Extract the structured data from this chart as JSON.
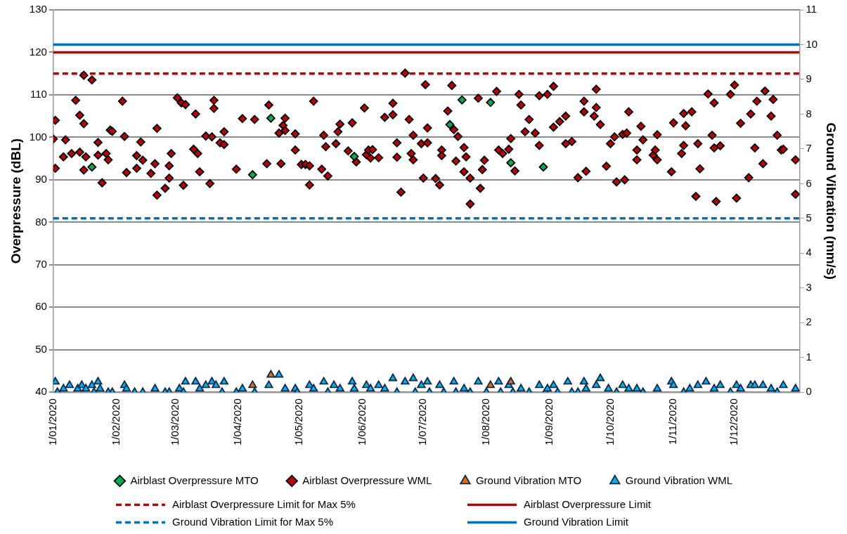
{
  "chart_data": {
    "type": "scatter",
    "ylabel": "Overpressure (dBL)",
    "y2label": "Ground Vibration (mm/s)",
    "xlim": [
      "2020-01-01",
      "2021-01-02"
    ],
    "xticks": [
      {
        "value": "2020-01-01",
        "label": "1/01/2020"
      },
      {
        "value": "2020-02-01",
        "label": "1/02/2020"
      },
      {
        "value": "2020-03-01",
        "label": "1/03/2020"
      },
      {
        "value": "2020-04-01",
        "label": "1/04/2020"
      },
      {
        "value": "2020-05-01",
        "label": "1/05/2020"
      },
      {
        "value": "2020-06-01",
        "label": "1/06/2020"
      },
      {
        "value": "2020-07-01",
        "label": "1/07/2020"
      },
      {
        "value": "2020-08-01",
        "label": "1/08/2020"
      },
      {
        "value": "2020-09-01",
        "label": "1/09/2020"
      },
      {
        "value": "2020-10-01",
        "label": "1/10/2020"
      },
      {
        "value": "2020-11-01",
        "label": "1/11/2020"
      },
      {
        "value": "2020-12-01",
        "label": "1/12/2020"
      }
    ],
    "ylim": [
      40,
      130
    ],
    "yticks": [
      40,
      50,
      60,
      70,
      80,
      90,
      100,
      110,
      120,
      130
    ],
    "y2lim": [
      0,
      11
    ],
    "y2ticks": [
      0,
      1,
      2,
      3,
      4,
      5,
      6,
      7,
      8,
      9,
      10,
      11
    ],
    "grid": "y",
    "legend": "bottom",
    "series": [
      {
        "name": "Airblast Overpressure MTO",
        "color": "#00b050",
        "marker": "diamond",
        "x": [
          "2020-01-20",
          "2020-04-08",
          "2020-04-17",
          "2020-05-28",
          "2020-07-14",
          "2020-07-20",
          "2020-08-03",
          "2020-08-13",
          "2020-08-29"
        ],
        "values": [
          93.0,
          91.2,
          104.5,
          95.5,
          103.0,
          108.8,
          108.2,
          94.0,
          93.0
        ]
      },
      {
        "name": "Airblast Overpressure WML",
        "color": "#c00000",
        "marker": "diamond",
        "x": [
          "2020-01-01",
          "2020-01-02",
          "2020-01-02",
          "2020-01-06",
          "2020-01-07",
          "2020-01-10",
          "2020-01-12",
          "2020-01-14",
          "2020-01-14",
          "2020-01-16",
          "2020-01-16",
          "2020-01-16",
          "2020-01-17",
          "2020-01-20",
          "2020-01-23",
          "2020-01-23",
          "2020-01-25",
          "2020-01-27",
          "2020-01-28",
          "2020-01-29",
          "2020-01-30",
          "2020-02-04",
          "2020-02-05",
          "2020-02-06",
          "2020-02-11",
          "2020-02-11",
          "2020-02-13",
          "2020-02-14",
          "2020-02-18",
          "2020-02-20",
          "2020-02-21",
          "2020-02-21",
          "2020-02-25",
          "2020-02-27",
          "2020-02-27",
          "2020-02-28",
          "2020-03-02",
          "2020-03-04",
          "2020-03-05",
          "2020-03-06",
          "2020-03-10",
          "2020-03-11",
          "2020-03-12",
          "2020-03-13",
          "2020-03-16",
          "2020-03-18",
          "2020-03-19",
          "2020-03-20",
          "2020-03-20",
          "2020-03-23",
          "2020-03-25",
          "2020-03-25",
          "2020-03-31",
          "2020-04-03",
          "2020-04-09",
          "2020-04-15",
          "2020-04-16",
          "2020-04-21",
          "2020-04-22",
          "2020-04-23",
          "2020-04-24",
          "2020-04-24",
          "2020-04-29",
          "2020-04-29",
          "2020-05-02",
          "2020-05-04",
          "2020-05-06",
          "2020-05-06",
          "2020-05-08",
          "2020-05-12",
          "2020-05-13",
          "2020-05-14",
          "2020-05-15",
          "2020-05-19",
          "2020-05-20",
          "2020-05-21",
          "2020-05-25",
          "2020-05-27",
          "2020-05-29",
          "2020-06-02",
          "2020-06-03",
          "2020-06-04",
          "2020-06-05",
          "2020-06-06",
          "2020-06-09",
          "2020-06-12",
          "2020-06-16",
          "2020-06-16",
          "2020-06-18",
          "2020-06-18",
          "2020-06-20",
          "2020-06-22",
          "2020-06-24",
          "2020-06-25",
          "2020-06-26",
          "2020-06-26",
          "2020-06-30",
          "2020-07-01",
          "2020-07-02",
          "2020-07-03",
          "2020-07-03",
          "2020-07-07",
          "2020-07-09",
          "2020-07-10",
          "2020-07-10",
          "2020-07-13",
          "2020-07-15",
          "2020-07-16",
          "2020-07-17",
          "2020-07-18",
          "2020-07-21",
          "2020-07-21",
          "2020-07-22",
          "2020-07-24",
          "2020-07-24",
          "2020-07-28",
          "2020-07-29",
          "2020-07-30",
          "2020-07-31",
          "2020-08-06",
          "2020-08-07",
          "2020-08-09",
          "2020-08-12",
          "2020-08-13",
          "2020-08-15",
          "2020-08-17",
          "2020-08-18",
          "2020-08-20",
          "2020-08-22",
          "2020-08-25",
          "2020-08-27",
          "2020-08-27",
          "2020-08-31",
          "2020-09-03",
          "2020-09-03",
          "2020-09-06",
          "2020-09-09",
          "2020-09-09",
          "2020-09-12",
          "2020-09-15",
          "2020-09-18",
          "2020-09-18",
          "2020-09-19",
          "2020-09-23",
          "2020-09-24",
          "2020-09-24",
          "2020-09-26",
          "2020-09-29",
          "2020-10-01",
          "2020-10-03",
          "2020-10-04",
          "2020-10-07",
          "2020-10-08",
          "2020-10-09",
          "2020-10-10",
          "2020-10-14",
          "2020-10-14",
          "2020-10-16",
          "2020-10-17",
          "2020-10-22",
          "2020-10-23",
          "2020-10-24",
          "2020-10-24",
          "2020-10-31",
          "2020-11-01",
          "2020-11-05",
          "2020-11-06",
          "2020-11-06",
          "2020-11-07",
          "2020-11-10",
          "2020-11-12",
          "2020-11-13",
          "2020-11-14",
          "2020-11-18",
          "2020-11-20",
          "2020-11-21",
          "2020-11-21",
          "2020-11-22",
          "2020-11-24",
          "2020-11-29",
          "2020-12-01",
          "2020-12-02",
          "2020-12-04",
          "2020-12-08",
          "2020-12-09",
          "2020-12-11",
          "2020-12-12",
          "2020-12-15",
          "2020-12-16",
          "2020-12-19",
          "2020-12-20",
          "2020-12-22",
          "2020-12-24",
          "2020-12-25",
          "2020-12-31",
          "2020-12-31"
        ],
        "values": [
          99.6,
          104.0,
          92.7,
          95.4,
          99.4,
          96.2,
          108.7,
          105.2,
          96.5,
          103.2,
          92.3,
          114.6,
          95.4,
          113.5,
          98.8,
          95.8,
          89.3,
          96.2,
          94.7,
          101.7,
          101.4,
          108.5,
          100.2,
          91.7,
          92.7,
          95.7,
          98.9,
          94.6,
          91.5,
          93.8,
          102.1,
          86.4,
          88.0,
          93.3,
          90.4,
          96.2,
          109.3,
          108.1,
          88.7,
          107.7,
          97.2,
          105.5,
          96.2,
          91.9,
          100.3,
          89.1,
          100.1,
          106.8,
          108.7,
          98.7,
          101.3,
          98.3,
          92.5,
          104.4,
          104.2,
          93.8,
          107.6,
          101.0,
          93.8,
          102.8,
          104.5,
          101.6,
          100.8,
          97.0,
          93.6,
          93.6,
          88.8,
          93.3,
          108.5,
          92.5,
          100.5,
          97.8,
          90.9,
          98.5,
          101.3,
          103.1,
          96.8,
          103.4,
          94.2,
          106.9,
          95.9,
          97.0,
          95.1,
          97.1,
          95.2,
          104.7,
          105.3,
          108.0,
          98.7,
          95.3,
          87.1,
          115.1,
          104.2,
          96.2,
          100.5,
          94.7,
          98.5,
          90.4,
          112.4,
          102.2,
          98.7,
          90.3,
          88.8,
          97.0,
          95.7,
          106.2,
          112.2,
          101.8,
          94.4,
          100.2,
          91.9,
          97.6,
          95.4,
          90.4,
          84.3,
          109.2,
          88.0,
          92.4,
          94.6,
          110.8,
          97.0,
          96.2,
          97.2,
          99.7,
          92.1,
          110.1,
          107.6,
          101.3,
          104.2,
          101.0,
          98.1,
          109.8,
          110.1,
          112.0,
          102.4,
          103.7,
          105.0,
          98.5,
          99.0,
          90.5,
          108.5,
          106.0,
          92.0,
          105.0,
          111.3,
          107.0,
          103.0,
          93.2,
          98.5,
          100.1,
          89.5,
          100.7,
          90.0,
          101.0,
          106.0,
          97.0,
          94.7,
          102.6,
          99.4,
          95.8,
          97.0,
          100.6,
          94.7,
          91.9,
          103.4,
          96.2,
          105.6,
          98.1,
          102.7,
          106.0,
          86.1,
          98.5,
          92.6,
          110.2,
          100.5,
          97.5,
          108.1,
          84.9,
          98.0,
          110.1,
          112.3,
          85.7,
          103.3,
          90.5,
          105.5,
          97.5,
          108.5,
          93.8,
          110.9,
          105.0,
          108.9,
          100.5,
          97.0,
          97.2,
          94.7,
          86.6
        ]
      },
      {
        "name": "Ground Vibration MTO",
        "color": "#e46c0a",
        "marker": "triangle",
        "axis": "y2",
        "x": [
          "2020-04-08",
          "2020-04-17",
          "2020-08-03",
          "2020-08-13"
        ],
        "values": [
          0.2,
          0.5,
          0.2,
          0.3
        ]
      },
      {
        "name": "Ground Vibration WML",
        "color": "#00b0f0",
        "marker": "triangle",
        "axis": "y2",
        "x": [
          "2020-01-02",
          "2020-01-03",
          "2020-01-06",
          "2020-01-09",
          "2020-01-13",
          "2020-01-15",
          "2020-01-17",
          "2020-01-20",
          "2020-01-21",
          "2020-01-23",
          "2020-01-24",
          "2020-01-28",
          "2020-01-30",
          "2020-02-05",
          "2020-02-06",
          "2020-02-10",
          "2020-02-14",
          "2020-02-20",
          "2020-02-25",
          "2020-02-27",
          "2020-03-03",
          "2020-03-05",
          "2020-03-06",
          "2020-03-11",
          "2020-03-13",
          "2020-03-16",
          "2020-03-19",
          "2020-03-21",
          "2020-03-24",
          "2020-03-25",
          "2020-03-31",
          "2020-04-03",
          "2020-04-09",
          "2020-04-16",
          "2020-04-21",
          "2020-04-24",
          "2020-04-29",
          "2020-04-30",
          "2020-05-06",
          "2020-05-08",
          "2020-05-13",
          "2020-05-15",
          "2020-05-18",
          "2020-05-21",
          "2020-05-27",
          "2020-05-28",
          "2020-06-03",
          "2020-06-05",
          "2020-06-09",
          "2020-06-12",
          "2020-06-16",
          "2020-06-18",
          "2020-06-22",
          "2020-06-26",
          "2020-06-27",
          "2020-06-30",
          "2020-07-03",
          "2020-07-04",
          "2020-07-09",
          "2020-07-11",
          "2020-07-16",
          "2020-07-17",
          "2020-07-21",
          "2020-07-24",
          "2020-07-28",
          "2020-08-01",
          "2020-08-07",
          "2020-08-08",
          "2020-08-12",
          "2020-08-14",
          "2020-08-18",
          "2020-08-22",
          "2020-08-27",
          "2020-08-30",
          "2020-08-31",
          "2020-09-03",
          "2020-09-05",
          "2020-09-10",
          "2020-09-12",
          "2020-09-15",
          "2020-09-18",
          "2020-09-19",
          "2020-09-24",
          "2020-09-26",
          "2020-09-30",
          "2020-10-04",
          "2020-10-07",
          "2020-10-10",
          "2020-10-14",
          "2020-10-17",
          "2020-10-24",
          "2020-10-31",
          "2020-11-01",
          "2020-11-06",
          "2020-11-09",
          "2020-11-13",
          "2020-11-17",
          "2020-11-21",
          "2020-11-24",
          "2020-11-29",
          "2020-12-02",
          "2020-12-04",
          "2020-12-09",
          "2020-12-11",
          "2020-12-15",
          "2020-12-19",
          "2020-12-22",
          "2020-12-25",
          "2020-12-31"
        ],
        "values": [
          0.3,
          0.0,
          0.1,
          0.2,
          0.1,
          0.2,
          0.1,
          0.2,
          0.0,
          0.3,
          0.1,
          0.0,
          0.0,
          0.2,
          0.1,
          0.0,
          0.0,
          0.1,
          0.0,
          0.0,
          0.1,
          0.0,
          0.3,
          0.3,
          0.1,
          0.2,
          0.3,
          0.2,
          0.0,
          0.3,
          0.0,
          0.1,
          0.0,
          0.2,
          0.5,
          0.1,
          0.1,
          0.0,
          0.2,
          0.1,
          0.3,
          0.0,
          0.2,
          0.1,
          0.3,
          0.1,
          0.2,
          0.1,
          0.2,
          0.1,
          0.4,
          0.0,
          0.3,
          0.4,
          0.0,
          0.2,
          0.3,
          0.0,
          0.2,
          0.0,
          0.3,
          0.0,
          0.1,
          0.0,
          0.3,
          0.0,
          0.3,
          0.0,
          0.2,
          0.0,
          0.1,
          0.0,
          0.2,
          0.0,
          0.1,
          0.2,
          0.0,
          0.3,
          0.0,
          0.0,
          0.3,
          0.1,
          0.2,
          0.4,
          0.1,
          0.0,
          0.2,
          0.1,
          0.1,
          0.0,
          0.1,
          0.3,
          0.2,
          0.0,
          0.1,
          0.2,
          0.3,
          0.1,
          0.2,
          0.0,
          0.2,
          0.1,
          0.2,
          0.2,
          0.2,
          0.1,
          0.0,
          0.2,
          0.1
        ]
      }
    ],
    "ref_lines": [
      {
        "axis": "y",
        "value": 115,
        "label": "Airblast Overpressure Limit for Max 5%",
        "color": "#c00000",
        "line_style": "dashed"
      },
      {
        "axis": "y",
        "value": 120,
        "label": "Airblast Overpressure Limit",
        "color": "#c00000",
        "line_style": "solid"
      },
      {
        "axis": "y2",
        "value": 5,
        "label": "Ground Vibration Limit for Max 5%",
        "color": "#0070c0",
        "line_style": "dashed"
      },
      {
        "axis": "y2",
        "value": 10,
        "label": "Ground Vibration Limit",
        "color": "#0070c0",
        "line_style": "solid"
      }
    ]
  }
}
